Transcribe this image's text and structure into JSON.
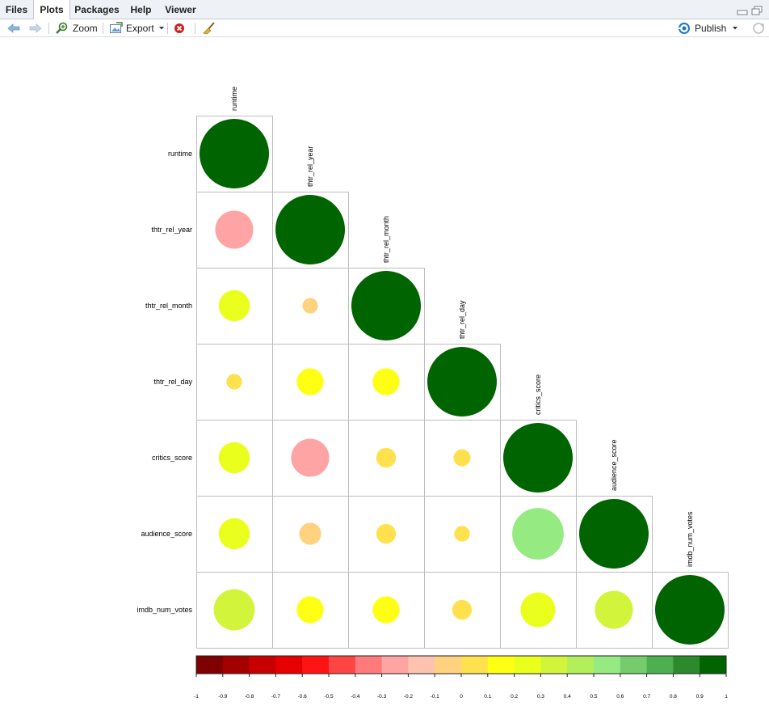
{
  "tabs": [
    {
      "label": "Files",
      "active": false
    },
    {
      "label": "Plots",
      "active": true
    },
    {
      "label": "Packages",
      "active": false
    },
    {
      "label": "Help",
      "active": false
    },
    {
      "label": "Viewer",
      "active": false
    }
  ],
  "toolbar": {
    "zoom_label": "Zoom",
    "export_label": "Export",
    "publish_label": "Publish"
  },
  "colors": {
    "tab_bg": "#eef1f5",
    "grid_line": "#bdbdbd",
    "publish_blue": "#1a78c2",
    "delete_red": "#c82323"
  },
  "chart_data": {
    "type": "heatmap",
    "style": "correlation-circles",
    "matrix_shape": "lower-triangle",
    "variables": [
      "runtime",
      "thtr_rel_year",
      "thtr_rel_month",
      "thtr_rel_day",
      "critics_score",
      "audience_score",
      "imdb_num_votes"
    ],
    "correlations": [
      [
        1.0
      ],
      [
        -0.3,
        1.0
      ],
      [
        0.2,
        -0.05,
        1.0
      ],
      [
        0.05,
        0.15,
        0.15,
        1.0
      ],
      [
        0.2,
        -0.3,
        0.08,
        0.06,
        1.0
      ],
      [
        0.2,
        -0.1,
        0.08,
        0.05,
        0.55,
        1.0
      ],
      [
        0.35,
        0.15,
        0.15,
        0.08,
        0.25,
        0.3,
        1.0
      ]
    ],
    "colorbar": {
      "range": [
        -1,
        1
      ],
      "ticks": [
        "-1",
        "-0.9",
        "-0.8",
        "-0.7",
        "-0.6",
        "-0.5",
        "-0.4",
        "-0.3",
        "-0.2",
        "-0.1",
        "0",
        "0.1",
        "0.2",
        "0.3",
        "0.4",
        "0.5",
        "0.6",
        "0.7",
        "0.8",
        "0.9",
        "1"
      ],
      "colors": [
        "#7f0000",
        "#a50000",
        "#c80000",
        "#e60000",
        "#ff1414",
        "#ff4444",
        "#ff7a7a",
        "#ffa4a4",
        "#fcc4b0",
        "#ffd27f",
        "#ffe14d",
        "#ffff14",
        "#eaff1c",
        "#d2f53c",
        "#b2ef5a",
        "#96ea82",
        "#74cc6c",
        "#4caf50",
        "#2b8a2b",
        "#006400"
      ]
    },
    "legend_position": "bottom",
    "grid": true
  }
}
